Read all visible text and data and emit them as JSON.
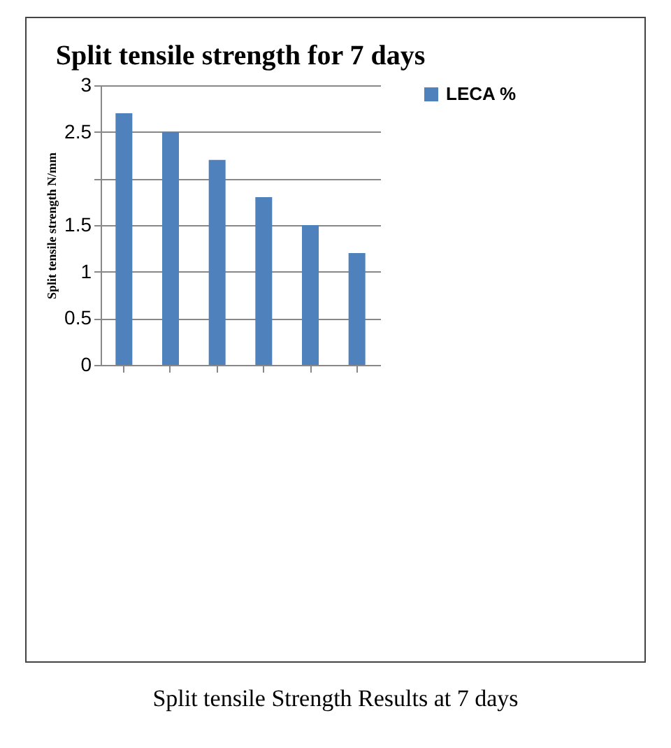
{
  "chart_data": {
    "type": "bar",
    "title": "Split tensile strength for 7 days",
    "ylabel": "Split tensile strength N/mm",
    "categories": [
      null,
      null,
      null,
      null,
      null,
      null
    ],
    "series": [
      {
        "name": "LECA %",
        "color": "#4f81bd",
        "values": [
          2.7,
          2.5,
          2.2,
          1.8,
          1.5,
          1.2
        ]
      }
    ],
    "ylim": [
      0,
      3
    ],
    "yticks": [
      0,
      0.5,
      1,
      1.5,
      {
        "value": 2,
        "label": null
      },
      2.5,
      3
    ],
    "grid": "y",
    "legend": "right",
    "annotations": [
      "Split tensile Strength Results at 7 days"
    ]
  }
}
